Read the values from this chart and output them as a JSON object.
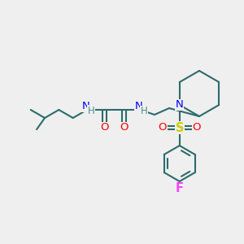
{
  "background_color": "#efefef",
  "bond_color": "#2d6b6b",
  "atom_colors": {
    "N": "#0000ff",
    "O": "#ff0000",
    "S": "#cccc00",
    "F": "#ff44ff",
    "H": "#4a9090"
  },
  "figsize": [
    3.0,
    3.0
  ],
  "dpi": 100,
  "lw": 1.5,
  "fs": 8.5
}
